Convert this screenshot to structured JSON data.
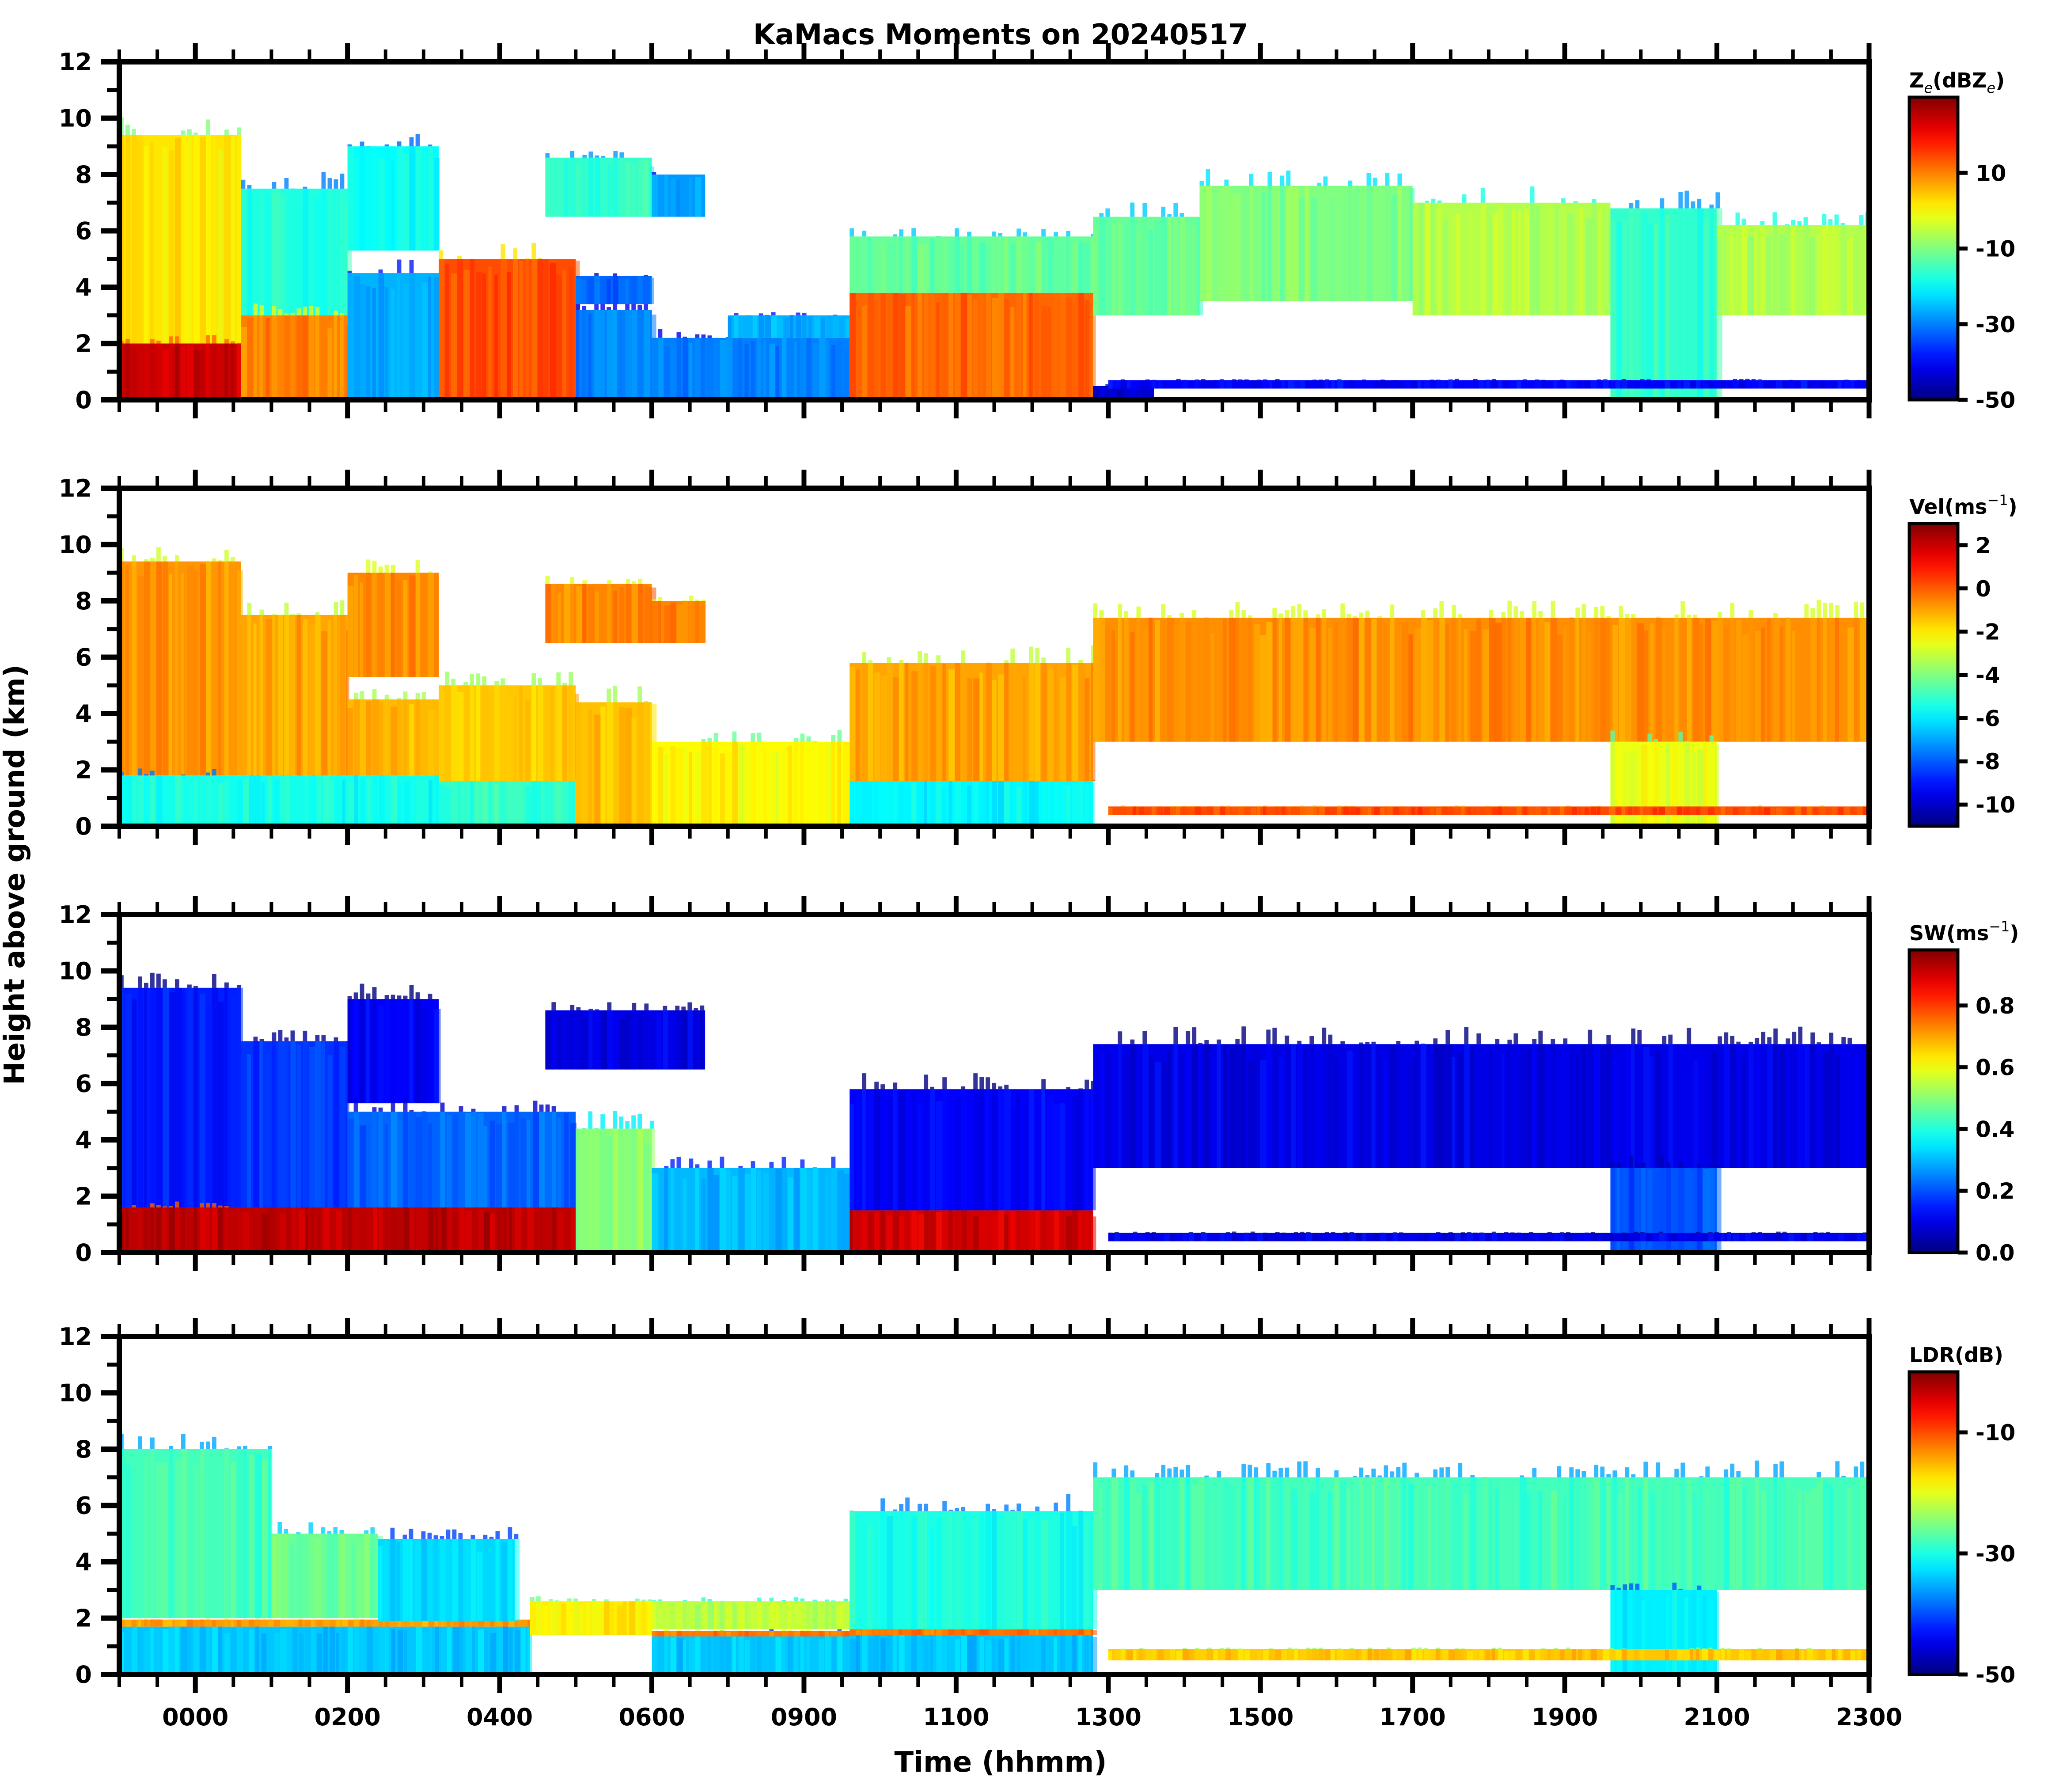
{
  "chart_data": {
    "type": "heatmap",
    "title": "KaMacs Moments on 20240517",
    "xlabel": "Time (hhmm)",
    "ylabel": "Height above ground (km)",
    "xticks": [
      "0000",
      "0200",
      "0400",
      "0600",
      "0900",
      "1100",
      "1300",
      "1500",
      "1700",
      "1900",
      "2100",
      "2300"
    ],
    "xlim_tick_index": [
      -0.5,
      11
    ],
    "minor_ticks_per_major": 4,
    "ylim": [
      0,
      12
    ],
    "yticks": [
      0,
      2,
      4,
      6,
      8,
      10,
      12
    ],
    "yminor_step": 1,
    "grid": false,
    "colormap": "jet",
    "panels": [
      {
        "name": "reflectivity",
        "colorbar_label": "Z",
        "colorbar_label_sub": "e",
        "colorbar_label_rest": "(dBZ",
        "colorbar_label_sub2": "e",
        "colorbar_label_end": ")",
        "vmin": -50,
        "vmax": 30,
        "cbar_ticks": [
          10,
          -10,
          -30,
          -50
        ],
        "layers": [
          {
            "t0": -0.5,
            "t1": 0.3,
            "base": 0,
            "top": 9.4,
            "value": 2
          },
          {
            "t0": -0.5,
            "t1": 0.7,
            "base": 0,
            "top": 2.0,
            "value": 24
          },
          {
            "t0": 0.3,
            "t1": 1.0,
            "base": 3.0,
            "top": 7.5,
            "value": -18
          },
          {
            "t0": 0.3,
            "t1": 1.0,
            "base": 0,
            "top": 3.0,
            "value": 10
          },
          {
            "t0": 1.0,
            "t1": 1.6,
            "base": 5.3,
            "top": 9.0,
            "value": -20
          },
          {
            "t0": 1.0,
            "t1": 1.6,
            "base": 0,
            "top": 4.5,
            "value": -26
          },
          {
            "t0": 1.6,
            "t1": 2.5,
            "base": 0,
            "top": 5.0,
            "value": 14
          },
          {
            "t0": 2.5,
            "t1": 3.0,
            "base": 0,
            "top": 3.2,
            "value": -30
          },
          {
            "t0": 2.5,
            "t1": 3.0,
            "base": 3.4,
            "top": 4.4,
            "value": -32
          },
          {
            "t0": 2.3,
            "t1": 3.0,
            "base": 6.5,
            "top": 8.6,
            "value": -16
          },
          {
            "t0": 3.0,
            "t1": 3.35,
            "base": 6.5,
            "top": 8.0,
            "value": -28
          },
          {
            "t0": 3.0,
            "t1": 4.3,
            "base": 0,
            "top": 2.2,
            "value": -30
          },
          {
            "t0": 3.5,
            "t1": 4.3,
            "base": 2.2,
            "top": 3.0,
            "value": -26
          },
          {
            "t0": 4.3,
            "t1": 5.9,
            "base": 0,
            "top": 3.8,
            "value": 12
          },
          {
            "t0": 4.3,
            "t1": 5.9,
            "base": 3.8,
            "top": 5.8,
            "value": -12
          },
          {
            "t0": 5.9,
            "t1": 6.3,
            "base": 0,
            "top": 0.5,
            "value": -44
          },
          {
            "t0": 5.9,
            "t1": 6.6,
            "base": 3.0,
            "top": 6.5,
            "value": -12
          },
          {
            "t0": 6.6,
            "t1": 8.0,
            "base": 3.5,
            "top": 7.6,
            "value": -10
          },
          {
            "t0": 8.0,
            "t1": 9.3,
            "base": 3.0,
            "top": 7.0,
            "value": -6
          },
          {
            "t0": 9.3,
            "t1": 10.0,
            "base": 0,
            "top": 6.8,
            "value": -16
          },
          {
            "t0": 10.0,
            "t1": 11.0,
            "base": 3.0,
            "top": 6.2,
            "value": -6
          },
          {
            "t0": 6.0,
            "t1": 11.0,
            "base": 0.4,
            "top": 0.7,
            "value": -40
          }
        ]
      },
      {
        "name": "velocity",
        "colorbar_label": "Vel(ms",
        "colorbar_label_sup": "−1",
        "colorbar_label_end": ")",
        "vmin": -11,
        "vmax": 3,
        "cbar_ticks": [
          2,
          0,
          -2,
          -4,
          -6,
          -8,
          -10
        ],
        "layers": [
          {
            "t0": -0.5,
            "t1": 0.3,
            "base": 1.8,
            "top": 9.4,
            "value": -0.8
          },
          {
            "t0": -0.5,
            "t1": 1.6,
            "base": 0,
            "top": 1.8,
            "value": -5.5
          },
          {
            "t0": 0.3,
            "t1": 1.0,
            "base": 1.8,
            "top": 7.5,
            "value": -1.0
          },
          {
            "t0": 1.0,
            "t1": 1.6,
            "base": 5.3,
            "top": 9.0,
            "value": -0.6
          },
          {
            "t0": 1.0,
            "t1": 1.6,
            "base": 1.8,
            "top": 4.5,
            "value": -1.3
          },
          {
            "t0": 1.6,
            "t1": 2.5,
            "base": 0,
            "top": 1.6,
            "value": -5.0
          },
          {
            "t0": 1.6,
            "t1": 2.5,
            "base": 1.6,
            "top": 5.0,
            "value": -1.5
          },
          {
            "t0": 2.3,
            "t1": 3.0,
            "base": 6.5,
            "top": 8.6,
            "value": -0.6
          },
          {
            "t0": 2.5,
            "t1": 3.0,
            "base": 0,
            "top": 4.4,
            "value": -1.4
          },
          {
            "t0": 3.0,
            "t1": 3.35,
            "base": 6.5,
            "top": 8.0,
            "value": -0.6
          },
          {
            "t0": 3.0,
            "t1": 4.3,
            "base": 0,
            "top": 3.0,
            "value": -2.2
          },
          {
            "t0": 4.3,
            "t1": 5.9,
            "base": 0,
            "top": 1.6,
            "value": -5.8
          },
          {
            "t0": 4.3,
            "t1": 5.9,
            "base": 1.6,
            "top": 5.8,
            "value": -1.0
          },
          {
            "t0": 5.9,
            "t1": 11.0,
            "base": 3.0,
            "top": 7.4,
            "value": -0.7
          },
          {
            "t0": 9.3,
            "t1": 10.0,
            "base": 0,
            "top": 3.0,
            "value": -2.5
          },
          {
            "t0": 6.0,
            "t1": 11.0,
            "base": 0.4,
            "top": 0.7,
            "value": 0.2
          }
        ]
      },
      {
        "name": "spectrum-width",
        "colorbar_label": "SW(ms",
        "colorbar_label_sup": "−1",
        "colorbar_label_end": ")",
        "vmin": 0.0,
        "vmax": 0.98,
        "cbar_ticks": [
          0.8,
          0.6,
          0.4,
          0.2,
          0.0
        ],
        "layers": [
          {
            "t0": -0.5,
            "t1": 0.3,
            "base": 1.6,
            "top": 9.4,
            "value": 0.15
          },
          {
            "t0": -0.5,
            "t1": 2.5,
            "base": 0,
            "top": 1.6,
            "value": 0.92
          },
          {
            "t0": 0.3,
            "t1": 1.0,
            "base": 1.6,
            "top": 7.5,
            "value": 0.17
          },
          {
            "t0": 1.0,
            "t1": 1.6,
            "base": 5.3,
            "top": 9.0,
            "value": 0.12
          },
          {
            "t0": 1.0,
            "t1": 2.5,
            "base": 1.6,
            "top": 5.0,
            "value": 0.22
          },
          {
            "t0": 2.3,
            "t1": 3.35,
            "base": 6.5,
            "top": 8.6,
            "value": 0.1
          },
          {
            "t0": 2.5,
            "t1": 3.0,
            "base": 0,
            "top": 4.4,
            "value": 0.5
          },
          {
            "t0": 3.0,
            "t1": 4.3,
            "base": 0,
            "top": 3.0,
            "value": 0.3
          },
          {
            "t0": 4.3,
            "t1": 5.9,
            "base": 0,
            "top": 1.5,
            "value": 0.9
          },
          {
            "t0": 4.3,
            "t1": 5.9,
            "base": 1.5,
            "top": 5.8,
            "value": 0.12
          },
          {
            "t0": 5.9,
            "t1": 11.0,
            "base": 3.0,
            "top": 7.4,
            "value": 0.1
          },
          {
            "t0": 9.3,
            "t1": 10.0,
            "base": 0,
            "top": 3.0,
            "value": 0.2
          },
          {
            "t0": 6.0,
            "t1": 11.0,
            "base": 0.4,
            "top": 0.7,
            "value": 0.1
          }
        ]
      },
      {
        "name": "linear-depolarization-ratio",
        "colorbar_label": "LDR(dB)",
        "vmin": -50,
        "vmax": 0,
        "cbar_ticks": [
          -10,
          -30,
          -50
        ],
        "layers": [
          {
            "t0": -0.5,
            "t1": 0.5,
            "base": 2.0,
            "top": 8.0,
            "value": -28
          },
          {
            "t0": -0.5,
            "t1": 2.2,
            "base": 0,
            "top": 1.7,
            "value": -34
          },
          {
            "t0": -0.5,
            "t1": 2.2,
            "base": 1.7,
            "top": 1.95,
            "value": -14
          },
          {
            "t0": 0.5,
            "t1": 1.2,
            "base": 2.0,
            "top": 5.0,
            "value": -26
          },
          {
            "t0": 1.2,
            "t1": 2.1,
            "base": 1.9,
            "top": 4.8,
            "value": -33
          },
          {
            "t0": 2.2,
            "t1": 3.0,
            "base": 1.4,
            "top": 2.6,
            "value": -18
          },
          {
            "t0": 3.0,
            "t1": 4.3,
            "base": 0,
            "top": 1.4,
            "value": -34
          },
          {
            "t0": 3.0,
            "t1": 4.3,
            "base": 1.35,
            "top": 1.55,
            "value": -12
          },
          {
            "t0": 3.0,
            "t1": 4.3,
            "base": 1.6,
            "top": 2.6,
            "value": -22
          },
          {
            "t0": 4.3,
            "t1": 5.9,
            "base": 0,
            "top": 1.4,
            "value": -34
          },
          {
            "t0": 4.3,
            "t1": 5.9,
            "base": 1.4,
            "top": 1.6,
            "value": -12
          },
          {
            "t0": 4.3,
            "t1": 5.9,
            "base": 1.6,
            "top": 5.8,
            "value": -30
          },
          {
            "t0": 5.9,
            "t1": 11.0,
            "base": 3.0,
            "top": 7.0,
            "value": -28
          },
          {
            "t0": 9.3,
            "t1": 10.0,
            "base": 0,
            "top": 3.0,
            "value": -32
          },
          {
            "t0": 6.0,
            "t1": 11.0,
            "base": 0.5,
            "top": 0.9,
            "value": -16
          }
        ]
      }
    ]
  }
}
